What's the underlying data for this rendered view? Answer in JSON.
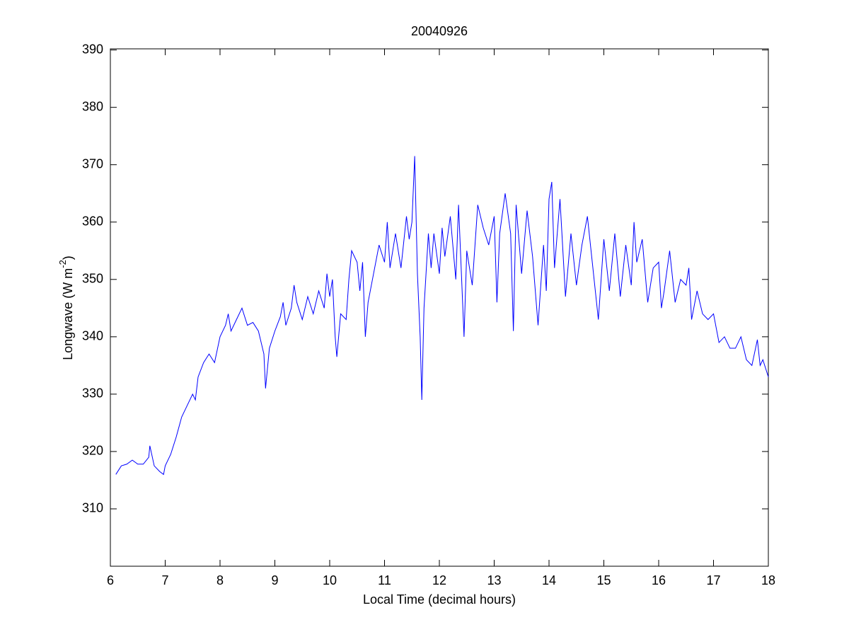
{
  "chart_data": {
    "type": "line",
    "title": "20040926",
    "xlabel": "Local Time (decimal hours)",
    "ylabel": {
      "text": "Longwave (W m",
      "superscript": "-2",
      "suffix": ")"
    },
    "xlim": [
      6,
      18
    ],
    "ylim": [
      300,
      390.2
    ],
    "xticks": [
      6,
      7,
      8,
      9,
      10,
      11,
      12,
      13,
      14,
      15,
      16,
      17,
      18
    ],
    "yticks": [
      310,
      320,
      330,
      340,
      350,
      360,
      370,
      380,
      390
    ],
    "grid": false,
    "series": [
      {
        "color": "#0000ff",
        "x": [
          6.1,
          6.2,
          6.3,
          6.4,
          6.5,
          6.6,
          6.7,
          6.72,
          6.8,
          6.9,
          6.97,
          7.0,
          7.1,
          7.2,
          7.3,
          7.4,
          7.5,
          7.55,
          7.6,
          7.7,
          7.8,
          7.9,
          8.0,
          8.1,
          8.15,
          8.2,
          8.3,
          8.4,
          8.5,
          8.6,
          8.7,
          8.8,
          8.83,
          8.9,
          9.0,
          9.1,
          9.15,
          9.2,
          9.3,
          9.35,
          9.4,
          9.5,
          9.6,
          9.7,
          9.8,
          9.9,
          9.95,
          10.0,
          10.05,
          10.1,
          10.13,
          10.2,
          10.3,
          10.35,
          10.4,
          10.5,
          10.55,
          10.6,
          10.65,
          10.7,
          10.8,
          10.9,
          11.0,
          11.05,
          11.1,
          11.2,
          11.3,
          11.4,
          11.45,
          11.5,
          11.55,
          11.6,
          11.65,
          11.68,
          11.72,
          11.8,
          11.85,
          11.9,
          12.0,
          12.05,
          12.1,
          12.2,
          12.3,
          12.35,
          12.45,
          12.5,
          12.6,
          12.7,
          12.8,
          12.9,
          13.0,
          13.05,
          13.1,
          13.2,
          13.3,
          13.35,
          13.4,
          13.5,
          13.6,
          13.7,
          13.8,
          13.9,
          13.95,
          14.0,
          14.05,
          14.1,
          14.2,
          14.3,
          14.4,
          14.5,
          14.6,
          14.7,
          14.8,
          14.9,
          15.0,
          15.1,
          15.2,
          15.3,
          15.4,
          15.5,
          15.55,
          15.6,
          15.7,
          15.8,
          15.9,
          16.0,
          16.05,
          16.1,
          16.2,
          16.3,
          16.4,
          16.5,
          16.55,
          16.6,
          16.7,
          16.8,
          16.9,
          17.0,
          17.1,
          17.2,
          17.3,
          17.4,
          17.5,
          17.6,
          17.7,
          17.8,
          17.85,
          17.9,
          18.0
        ],
        "values": [
          316,
          317.5,
          317.8,
          318.5,
          317.8,
          317.8,
          319,
          321,
          317.5,
          316.5,
          316,
          317.5,
          319.5,
          322.5,
          326,
          328,
          330,
          329,
          333,
          335.5,
          337,
          335.5,
          340,
          342,
          344,
          341,
          343,
          345,
          342,
          342.5,
          341,
          337,
          331,
          338,
          341,
          343.5,
          346,
          342,
          345,
          349,
          346,
          343,
          347,
          344,
          348,
          345,
          351,
          347,
          350,
          340,
          336.5,
          344,
          343,
          350,
          355,
          353,
          348,
          353,
          340,
          346,
          351,
          356,
          353,
          360,
          352,
          358,
          352,
          361,
          357,
          360,
          371.5,
          351,
          340,
          329,
          345,
          358,
          352,
          358,
          351,
          359,
          354,
          361,
          350,
          363,
          340,
          355,
          349,
          363,
          359,
          356,
          361,
          346,
          358,
          365,
          358,
          341,
          363,
          351,
          362,
          354,
          342,
          356,
          348,
          364,
          367,
          352,
          364,
          347,
          358,
          349,
          356,
          361,
          352,
          343,
          357,
          348,
          358,
          347,
          356,
          349,
          360,
          353,
          357,
          346,
          352,
          353,
          345,
          348,
          355,
          346,
          350,
          349,
          352,
          343,
          348,
          344,
          343,
          344,
          339,
          340,
          338,
          338,
          340,
          336,
          335,
          339.5,
          335,
          336,
          333
        ]
      }
    ]
  }
}
